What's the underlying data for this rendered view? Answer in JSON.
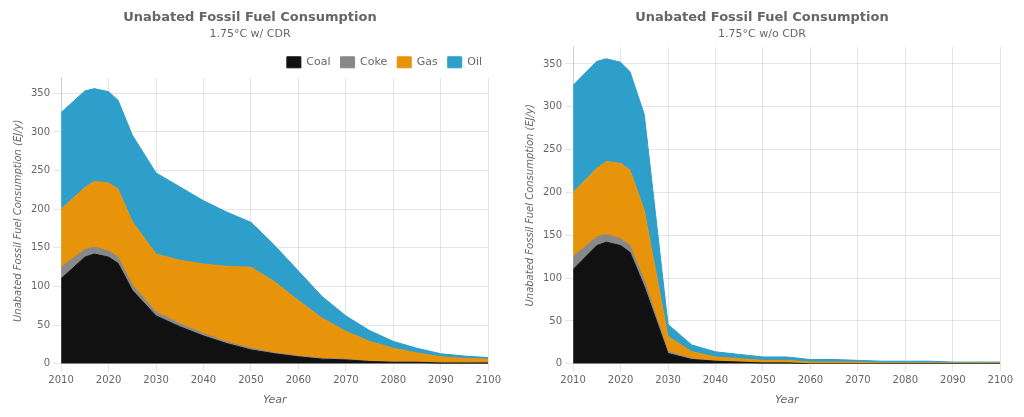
{
  "chart_data": [
    {
      "type": "area",
      "stacked": true,
      "grid": true,
      "legend": "upper right",
      "title": "Unabated Fossil Fuel Consumption",
      "subtitle": "1.75°C w/ CDR",
      "xlabel": "Year",
      "ylabel": "Unabated Fossil Fuel Consumption (EJ/y)",
      "x": [
        2010,
        2015,
        2017,
        2020,
        2022,
        2025,
        2030,
        2035,
        2040,
        2045,
        2050,
        2055,
        2060,
        2065,
        2070,
        2075,
        2080,
        2085,
        2090,
        2095,
        2100
      ],
      "xlim": [
        2010,
        2100
      ],
      "xticks": [
        2010,
        2020,
        2030,
        2040,
        2050,
        2060,
        2070,
        2080,
        2090,
        2100
      ],
      "ylim": [
        0,
        370
      ],
      "yticks": [
        0,
        50,
        100,
        150,
        200,
        250,
        300,
        350
      ],
      "series": [
        {
          "name": "Coal",
          "color": "#111111",
          "values": [
            110,
            138,
            142,
            138,
            130,
            95,
            62,
            48,
            36,
            26,
            18,
            13,
            9,
            6,
            5,
            3,
            2,
            2,
            1,
            1,
            1
          ]
        },
        {
          "name": "Coke",
          "color": "#888888",
          "values": [
            15,
            10,
            9,
            8,
            8,
            7,
            5,
            4,
            3,
            2,
            2,
            1,
            1,
            1,
            1,
            0,
            0,
            0,
            0,
            0,
            0
          ]
        },
        {
          "name": "Gas",
          "color": "#E8940A",
          "values": [
            75,
            80,
            85,
            88,
            88,
            82,
            75,
            82,
            90,
            98,
            105,
            92,
            72,
            52,
            36,
            26,
            18,
            12,
            8,
            6,
            5
          ]
        },
        {
          "name": "Oil",
          "color": "#2E9FCA",
          "values": [
            125,
            125,
            120,
            118,
            115,
            112,
            105,
            95,
            82,
            70,
            58,
            47,
            38,
            28,
            20,
            14,
            9,
            6,
            4,
            3,
            2
          ]
        }
      ]
    },
    {
      "type": "area",
      "stacked": true,
      "grid": true,
      "title": "Unabated Fossil Fuel Consumption",
      "subtitle": "1.75°C w/o CDR",
      "xlabel": "Year",
      "ylabel": "Unabated Fossil Fuel Consumption (EJ/y)",
      "x": [
        2010,
        2015,
        2017,
        2020,
        2022,
        2025,
        2030,
        2035,
        2040,
        2045,
        2050,
        2055,
        2060,
        2065,
        2070,
        2075,
        2080,
        2085,
        2090,
        2095,
        2100
      ],
      "xlim": [
        2010,
        2100
      ],
      "xticks": [
        2010,
        2020,
        2030,
        2040,
        2050,
        2060,
        2070,
        2080,
        2090,
        2100
      ],
      "ylim": [
        0,
        370
      ],
      "yticks": [
        0,
        50,
        100,
        150,
        200,
        250,
        300,
        350
      ],
      "series": [
        {
          "name": "Coal",
          "color": "#111111",
          "values": [
            110,
            138,
            142,
            138,
            130,
            90,
            12,
            5,
            3,
            2,
            1,
            1,
            0,
            0,
            0,
            0,
            0,
            0,
            0,
            0,
            0
          ]
        },
        {
          "name": "Coke",
          "color": "#888888",
          "values": [
            15,
            10,
            9,
            8,
            8,
            7,
            2,
            1,
            0,
            0,
            0,
            0,
            0,
            0,
            0,
            0,
            0,
            0,
            0,
            0,
            0
          ]
        },
        {
          "name": "Gas",
          "color": "#E8940A",
          "values": [
            75,
            80,
            85,
            88,
            88,
            82,
            18,
            8,
            5,
            4,
            3,
            3,
            2,
            2,
            2,
            1,
            1,
            1,
            1,
            1,
            1
          ]
        },
        {
          "name": "Oil",
          "color": "#2E9FCA",
          "values": [
            125,
            125,
            120,
            118,
            115,
            112,
            14,
            8,
            6,
            5,
            4,
            4,
            3,
            3,
            2,
            2,
            2,
            2,
            1,
            1,
            1
          ]
        }
      ]
    }
  ]
}
